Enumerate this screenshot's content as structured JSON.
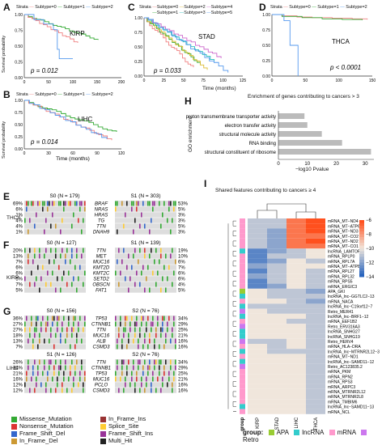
{
  "panels": {
    "A": "A",
    "B": "B",
    "C": "C",
    "D": "D",
    "E": "E",
    "F": "F",
    "G": "G",
    "H": "H",
    "I": "I"
  },
  "km": {
    "strata_label": "Strata",
    "subtype0": "Subtype=0",
    "subtype1": "Subtype=1",
    "subtype2": "Subtype=2",
    "subtype3": "Subtype=3",
    "subtype4": "Subtype=4",
    "subtype5": "Subtype=5",
    "ylabel": "Survival probability",
    "xlabel": "Time (months)",
    "A": {
      "cancer": "KIRP",
      "p": "p = 0.012",
      "yticks": [
        "0.00",
        "0.25",
        "0.50",
        "0.75",
        "1.00"
      ],
      "xticks": [
        "0",
        "50",
        "100",
        "150",
        "200"
      ]
    },
    "B": {
      "cancer": "LIHC",
      "p": "p = 0.014",
      "yticks": [
        "0.00",
        "0.25",
        "0.50",
        "0.75",
        "1.00"
      ],
      "xticks": [
        "0",
        "30",
        "60",
        "90",
        "120"
      ]
    },
    "C": {
      "cancer": "STAD",
      "p": "p = 0.033",
      "yticks": [
        "0.00",
        "0.25",
        "0.50",
        "0.75",
        "1.00"
      ],
      "xticks": [
        "0",
        "25",
        "50",
        "75",
        "100",
        "125"
      ]
    },
    "D": {
      "cancer": "THCA",
      "p": "p < 0.0001",
      "yticks": [
        "0.00",
        "0.25",
        "0.50",
        "0.75",
        "1.00"
      ],
      "xticks": [
        "0",
        "50",
        "100",
        "150"
      ]
    }
  },
  "colors": {
    "s0": "#f08080",
    "s1": "#33aa33",
    "s2": "#5599ee",
    "s3": "#22bbbb",
    "s4": "#cc66cc",
    "s5": "#ddbb33",
    "missense": "#33aa33",
    "nonsense": "#dd3333",
    "frameshift_del": "#3366cc",
    "inframe_del": "#cc9933",
    "inframe_ins": "#993333",
    "splice": "#ffcc33",
    "frameshift_ins": "#993399",
    "multi": "#222222",
    "bar": "#bbbbbb",
    "apa": "#99cc33",
    "lncrna": "#33cccc",
    "mrna": "#ff99cc",
    "retro": "#cc77ee"
  },
  "oncoprint": {
    "E": {
      "cancer": "THCA",
      "left_header": "S0 (N = 179)",
      "right_header": "S1 (N = 303)",
      "genes": [
        "BRAF",
        "NRAS",
        "HRAS",
        "TG",
        "TTN",
        "DNAH9"
      ],
      "left_pct": [
        "69%",
        "6%",
        "1%",
        "4%",
        "4%",
        "1%"
      ],
      "right_pct": [
        "53%",
        "5%",
        "3%",
        "3%",
        "5%",
        "3%"
      ]
    },
    "F": {
      "cancer": "KIRP",
      "left_header": "S0 (N = 127)",
      "right_header": "S1 (N = 139)",
      "genes": [
        "TTN",
        "MET",
        "MUC16",
        "KMT2D",
        "KMT2C",
        "SETD2",
        "OBSCN",
        "FAT1"
      ],
      "left_pct": [
        "20%",
        "13%",
        "7%",
        "6%",
        "6%",
        "5%",
        "7%",
        "5%"
      ],
      "right_pct": [
        "19%",
        "10%",
        "6%",
        "7%",
        "6%",
        "6%",
        "4%",
        "5%"
      ]
    },
    "G": {
      "cancer": "LIHC",
      "top_left_header": "S0 (N = 156)",
      "top_right_header": "S2 (N = 76)",
      "top_genes": [
        "TP53",
        "CTNNB1",
        "TTN",
        "MUC16",
        "ALB",
        "CSMD3"
      ],
      "top_left_pct": [
        "36%",
        "27%",
        "27%",
        "18%",
        "13%",
        "7%"
      ],
      "top_right_pct": [
        "34%",
        "29%",
        "25%",
        "21%",
        "16%",
        "16%"
      ],
      "bottom_left_header": "S1 (N = 126)",
      "bottom_right_header": "S2 (N = 76)",
      "bottom_genes": [
        "TTN",
        "CTNNB1",
        "TP53",
        "MUC16",
        "PCLO",
        "CSMD3"
      ],
      "bottom_left_pct": [
        "26%",
        "24%",
        "21%",
        "16%",
        "12%",
        "12%"
      ],
      "bottom_right_pct": [
        "34%",
        "29%",
        "25%",
        "21%",
        "16%",
        "16%"
      ]
    }
  },
  "mutation_legend": {
    "missense": "Missense_Mutation",
    "inframe_ins": "In_Frame_Ins",
    "nonsense": "Nonsense_Mutation",
    "splice": "Splice_Site",
    "frameshift_del": "Frame_Shift_Del",
    "frameshift_ins": "Frame_Shift_Ins",
    "inframe_del": "In_Frame_Del",
    "multi": "Multi_Hit"
  },
  "chart_data": {
    "type": "bar",
    "title": "Enrichment of genes contributing to cancers > 3",
    "xlabel": "−log10 Pvalue",
    "ylabel": "GO enrichment",
    "categories": [
      "proton transmembrane transporter activity",
      "electron transfer activity",
      "structural molecule activity",
      "RNA binding",
      "structural constituent of ribosome"
    ],
    "values": [
      9,
      10,
      15,
      22,
      32
    ],
    "xlim": [
      0,
      33
    ],
    "xticks": [
      "0",
      "10",
      "20",
      "30"
    ]
  },
  "heatmap": {
    "title": "Shared features contributing to cancers ≥ 4",
    "columns": [
      "KIRP",
      "STAD",
      "LIHC",
      "THCA"
    ],
    "group_label": "group",
    "colorbar_ticks": [
      "−6",
      "−8",
      "−10",
      "−12",
      "−14"
    ],
    "rows": [
      "mRNA_MT−ND4",
      "mRNA_MT−ATP6",
      "mRNA_MT−ND3",
      "mRNA_MT−CO2",
      "mRNA_MT−ND2",
      "mRNA_MT−CO1",
      "lncRNA_LAMTOR4",
      "mRNA_RPLP0",
      "mRNA_RPL7A",
      "mRNA_MT−ATP8",
      "mRNA_RPL27",
      "mRNA_RPL32",
      "mRNA_RPS5",
      "mRNA_ERGIC3",
      "APA_GKI",
      "lncRNA_lnc−GGTLC2−13",
      "mRNA_NACA",
      "lncRNA_lnc−C19orf12−7",
      "Retro_MER41",
      "lncRNA_lnc−BRF1−12",
      "mRNA_EEF1B2",
      "Retro_ERV316A3",
      "lncRNA_SNHG27",
      "lncRNA_SNHG19",
      "Retro_HERV4",
      "mRNA_HLA−DRA",
      "lncRNA_lnc−MTRNR2L12−3",
      "mRNA_MT−ND1",
      "lncRNA_lnc−SAMD11−12",
      "Retro_AC123835.2",
      "mRNA_PKM",
      "mRNA_RPN2",
      "mRNA_RPS3",
      "mRNA_ARPC3",
      "mRNA_MTRNR2L12",
      "mRNA_MTRNR2L8",
      "mRNA_TMBIM6",
      "lncRNA_lnc−SAMD11−13",
      "mRNA_NCL"
    ],
    "groups": [
      "mrna",
      "mrna",
      "mrna",
      "mrna",
      "mrna",
      "mrna",
      "lncrna",
      "mrna",
      "mrna",
      "mrna",
      "mrna",
      "mrna",
      "mrna",
      "mrna",
      "apa",
      "lncrna",
      "mrna",
      "lncrna",
      "retro",
      "lncrna",
      "mrna",
      "retro",
      "lncrna",
      "lncrna",
      "retro",
      "mrna",
      "lncrna",
      "mrna",
      "lncrna",
      "retro",
      "mrna",
      "mrna",
      "mrna",
      "mrna",
      "mrna",
      "mrna",
      "mrna",
      "lncrna",
      "mrna"
    ],
    "values": [
      [
        -11,
        -11,
        -7,
        -6
      ],
      [
        -11,
        -11,
        -7,
        -6
      ],
      [
        -11,
        -12,
        -7,
        -6
      ],
      [
        -11,
        -12,
        -7,
        -7
      ],
      [
        -11,
        -12,
        -7,
        -6
      ],
      [
        -11,
        -12,
        -7,
        -7
      ],
      [
        -13,
        -12,
        -11,
        -10
      ],
      [
        -13,
        -11,
        -11,
        -10
      ],
      [
        -13,
        -12,
        -10,
        -11
      ],
      [
        -12,
        -11,
        -10,
        -10
      ],
      [
        -13,
        -11,
        -10,
        -11
      ],
      [
        -12,
        -11,
        -10,
        -11
      ],
      [
        -13,
        -11,
        -10,
        -11
      ],
      [
        -13,
        -12,
        -10,
        -11
      ],
      [
        -10,
        -11,
        -11,
        -12
      ],
      [
        -10,
        -11,
        -11,
        -11
      ],
      [
        -10,
        -10,
        -11,
        -12
      ],
      [
        -11,
        -11,
        -11,
        -11
      ],
      [
        -10,
        -11,
        -11,
        -11
      ],
      [
        -10,
        -10,
        -10,
        -11
      ],
      [
        -10,
        -10,
        -11,
        -11
      ],
      [
        -10,
        -10,
        -10,
        -11
      ],
      [
        -10,
        -10,
        -10,
        -11
      ],
      [
        -10,
        -10,
        -10,
        -11
      ],
      [
        -11,
        -11,
        -10,
        -11
      ],
      [
        -10,
        -11,
        -10,
        -11
      ],
      [
        -10,
        -11,
        -11,
        -11
      ],
      [
        -10,
        -10,
        -10,
        -11
      ],
      [
        -10,
        -10,
        -10,
        -11
      ],
      [
        -10,
        -10,
        -10,
        -11
      ],
      [
        -10,
        -10,
        -10,
        -11
      ],
      [
        -10,
        -10,
        -10,
        -11
      ],
      [
        -10,
        -10,
        -10,
        -11
      ],
      [
        -10,
        -10,
        -10,
        -11
      ],
      [
        -10,
        -10,
        -10,
        -11
      ],
      [
        -10,
        -10,
        -10,
        -11
      ],
      [
        -10,
        -10,
        -10,
        -11
      ],
      [
        -10,
        -10,
        -10,
        -11
      ],
      [
        -10,
        -10,
        -10,
        -11
      ]
    ],
    "legend": {
      "title": "group:",
      "apa": "APA",
      "lncrna": "lncRNA",
      "mrna": "mRNA",
      "retro": "Retro"
    }
  }
}
